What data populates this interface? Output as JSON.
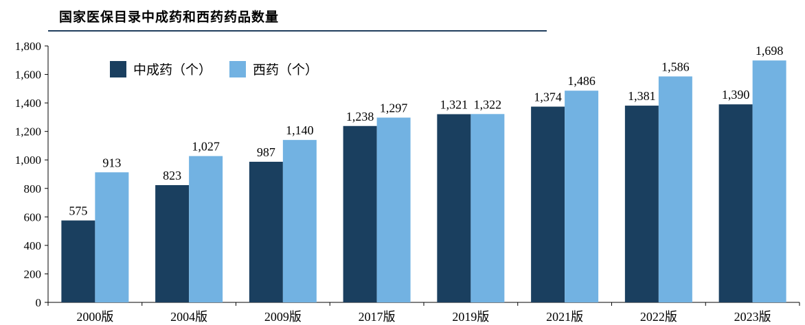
{
  "title": "国家医保目录中成药和西药药品数量",
  "colors": {
    "series_0": "#1a3f5f",
    "series_1": "#72b2e2",
    "axis": "#000000",
    "rule": "#1f3d5c"
  },
  "chart_data": {
    "type": "bar",
    "title": "国家医保目录中成药和西药药品数量",
    "categories": [
      "2000版",
      "2004版",
      "2009版",
      "2017版",
      "2019版",
      "2021版",
      "2022版",
      "2023版"
    ],
    "series": [
      {
        "name": "中成药（个）",
        "values": [
          575,
          823,
          987,
          1238,
          1321,
          1374,
          1381,
          1390
        ],
        "labels": [
          "575",
          "823",
          "987",
          "1,238",
          "1,321",
          "1,374",
          "1,381",
          "1,390"
        ]
      },
      {
        "name": "西药（个）",
        "values": [
          913,
          1027,
          1140,
          1297,
          1322,
          1486,
          1586,
          1698
        ],
        "labels": [
          "913",
          "1,027",
          "1,140",
          "1,297",
          "1,322",
          "1,486",
          "1,586",
          "1,698"
        ]
      }
    ],
    "yticks": [
      "0",
      "200",
      "400",
      "600",
      "800",
      "1,000",
      "1,200",
      "1,400",
      "1,600",
      "1,800"
    ],
    "ylim": [
      0,
      1800
    ],
    "grid": false,
    "legend": "top-left"
  }
}
